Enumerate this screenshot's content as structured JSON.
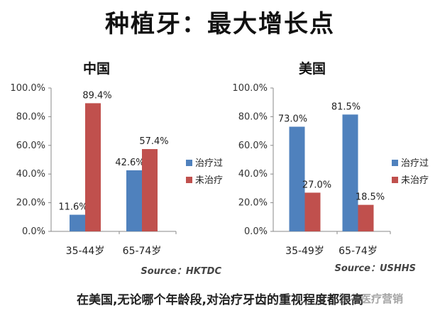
{
  "page": {
    "title": "种植牙：最大增长点",
    "footer": "在美国,无论哪个年龄段,对治疗牙齿的重视程度都很高",
    "watermark": "深谷医疗营销"
  },
  "colors": {
    "treated": "#4f81bd",
    "untreated": "#c0504d"
  },
  "chart_data": [
    {
      "type": "bar",
      "title": "中国",
      "categories": [
        "35-44岁",
        "65-74岁"
      ],
      "series": [
        {
          "name": "治疗过",
          "values": [
            11.6,
            42.6
          ],
          "labels": [
            "11.6%",
            "42.6%"
          ]
        },
        {
          "name": "未治疗",
          "values": [
            89.4,
            57.4
          ],
          "labels": [
            "89.4%",
            "57.4%"
          ]
        }
      ],
      "ylim": [
        0,
        100
      ],
      "yticks": [
        "0.0%",
        "20.0%",
        "40.0%",
        "60.0%",
        "80.0%",
        "100.0%"
      ],
      "grid": false,
      "legend": "right",
      "source": "Source：HKTDC"
    },
    {
      "type": "bar",
      "title": "美国",
      "categories": [
        "35-49岁",
        "65-74岁"
      ],
      "series": [
        {
          "name": "治疗过",
          "values": [
            73.0,
            81.5
          ],
          "labels": [
            "73.0%",
            "81.5%"
          ]
        },
        {
          "name": "未治疗",
          "values": [
            27.0,
            18.5
          ],
          "labels": [
            "27.0%",
            "18.5%"
          ]
        }
      ],
      "ylim": [
        0,
        100
      ],
      "yticks": [
        "0.0%",
        "20.0%",
        "40.0%",
        "60.0%",
        "80.0%",
        "100.0%"
      ],
      "grid": false,
      "legend": "right",
      "source": "Source：USHHS"
    }
  ]
}
